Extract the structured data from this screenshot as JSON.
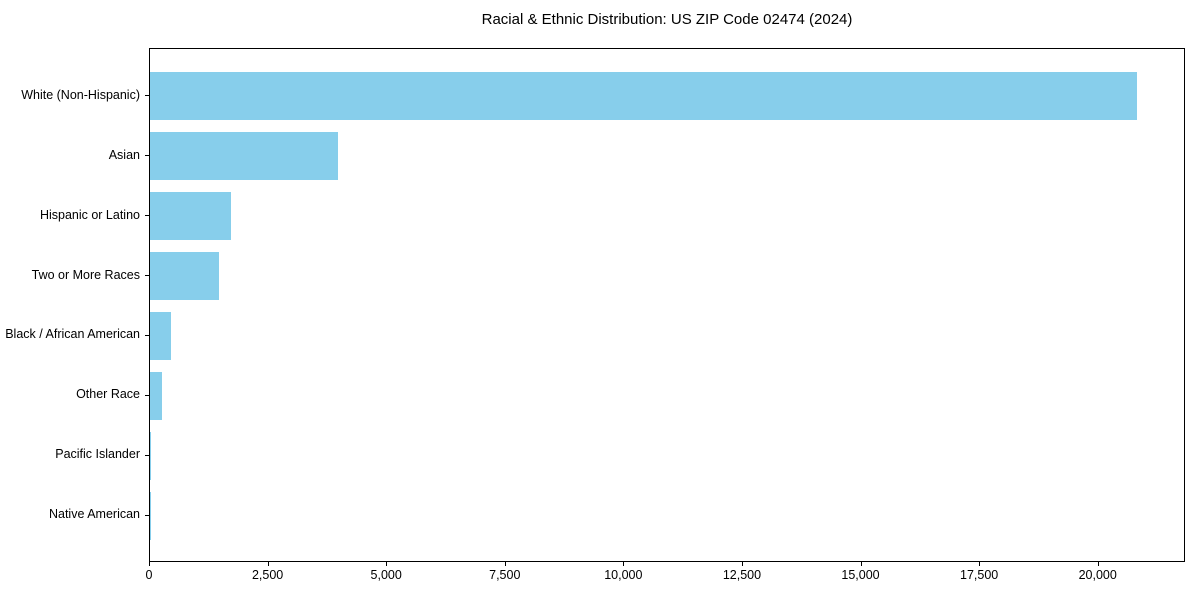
{
  "chart_data": {
    "type": "bar",
    "orientation": "horizontal",
    "title": "Racial & Ethnic Distribution: US ZIP Code 02474 (2024)",
    "categories": [
      "White (Non-Hispanic)",
      "Asian",
      "Hispanic or Latino",
      "Two or More Races",
      "Black / African American",
      "Other Race",
      "Pacific Islander",
      "Native American"
    ],
    "values": [
      20800,
      3970,
      1710,
      1450,
      450,
      260,
      12,
      8
    ],
    "xlabel": "",
    "ylabel": "",
    "xlim": [
      0,
      21840
    ],
    "xticks": [
      0,
      2500,
      5000,
      7500,
      10000,
      12500,
      15000,
      17500,
      20000
    ],
    "xtick_labels": [
      "0",
      "2,500",
      "5,000",
      "7,500",
      "10,000",
      "12,500",
      "15,000",
      "17,500",
      "20,000"
    ],
    "grid": false,
    "legend": "none",
    "bar_color": "#87CEEB",
    "axis_color": "#000000",
    "background_color": "#ffffff"
  }
}
